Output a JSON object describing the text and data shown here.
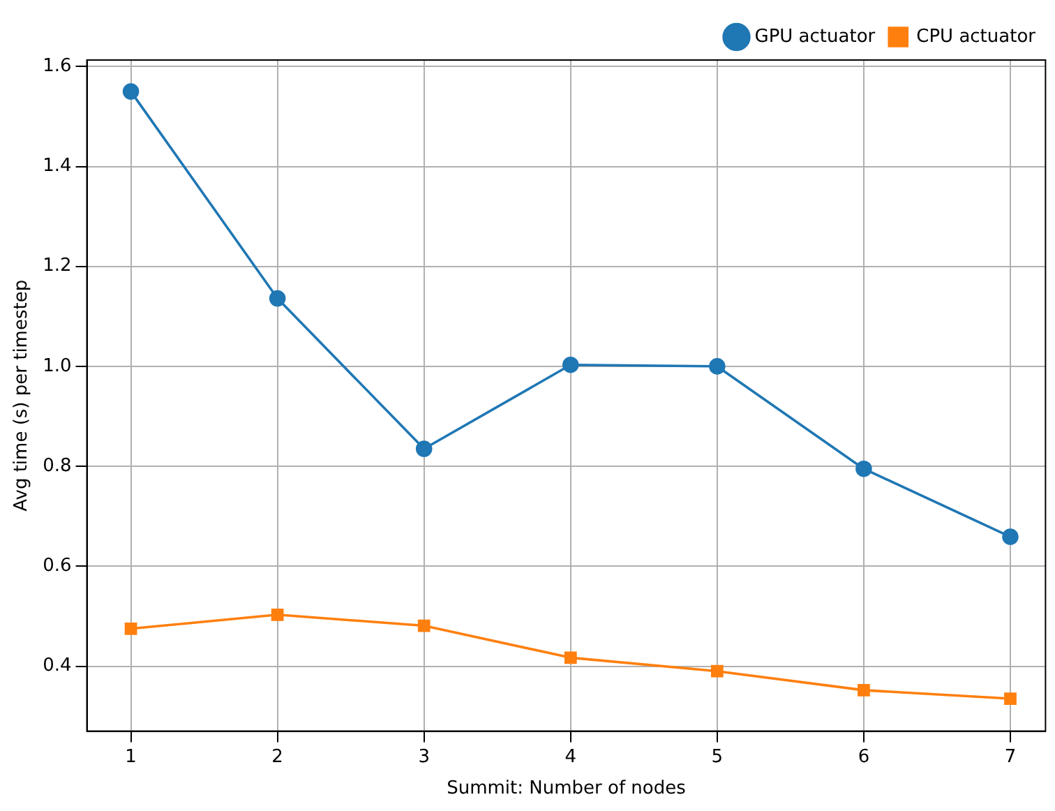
{
  "chart_data": {
    "type": "line",
    "xlabel": "Summit: Number of nodes",
    "ylabel": "Avg time (s) per timestep",
    "x": [
      1,
      2,
      3,
      4,
      5,
      6,
      7
    ],
    "series": [
      {
        "name": "GPU actuator",
        "color": "#1f77b4",
        "marker": "circle",
        "values": [
          1.55,
          1.136,
          0.835,
          1.003,
          1.0,
          0.795,
          0.659
        ]
      },
      {
        "name": "CPU actuator",
        "color": "#ff7f0e",
        "marker": "square",
        "values": [
          0.475,
          0.503,
          0.481,
          0.417,
          0.39,
          0.352,
          0.335
        ]
      }
    ],
    "xlim": [
      0.7,
      7.24
    ],
    "xticks": [
      1,
      2,
      3,
      4,
      5,
      6,
      7
    ],
    "ylim": [
      0.27,
      1.613
    ],
    "yticks": [
      0.4,
      0.6,
      0.8,
      {
        "value": 1,
        "label": "1.0"
      },
      1.2,
      1.4,
      1.6
    ],
    "grid": true,
    "legend": "top right",
    "line_style": "solid"
  }
}
